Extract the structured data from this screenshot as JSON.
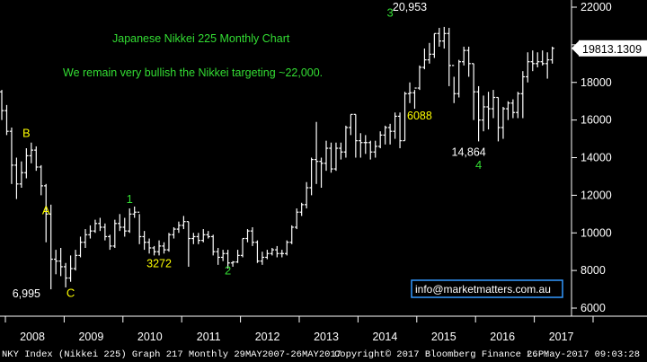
{
  "chart_data": {
    "type": "ohlc",
    "title": "Japanese Nikkei 225 Monthly Chart",
    "subtitle": "We remain very bullish the Nikkei targeting ~22,000.",
    "ylim": [
      6000,
      22000
    ],
    "y_ticks": [
      6000,
      8000,
      10000,
      12000,
      14000,
      16000,
      18000,
      20000,
      22000
    ],
    "x_labels": [
      "2008",
      "2009",
      "2010",
      "2011",
      "2012",
      "2013",
      "2014",
      "2015",
      "2016",
      "2017"
    ],
    "last_price_label": "19813.1309",
    "last_price": 19813.13,
    "series": [
      {
        "values": [
          [
            17500,
            17600,
            16000,
            16500
          ],
          [
            16500,
            16800,
            15200,
            15400
          ],
          [
            15400,
            15600,
            12600,
            13600
          ],
          [
            13600,
            14000,
            11800,
            12600
          ],
          [
            12600,
            13800,
            12400,
            13200
          ],
          [
            13200,
            14500,
            12900,
            14100
          ],
          [
            14100,
            14800,
            13700,
            14400
          ],
          [
            14400,
            14600,
            13300,
            13500
          ],
          [
            13500,
            13600,
            12000,
            12500
          ],
          [
            12500,
            12600,
            9500,
            11000
          ],
          [
            11000,
            11500,
            7000,
            8600
          ],
          [
            8600,
            9100,
            7800,
            8500
          ],
          [
            8500,
            9200,
            7700,
            8200
          ],
          [
            8200,
            8400,
            7100,
            7600
          ],
          [
            7600,
            8800,
            7400,
            8100
          ],
          [
            8100,
            9100,
            8000,
            8800
          ],
          [
            8800,
            9800,
            8700,
            9500
          ],
          [
            9500,
            10200,
            9200,
            9900
          ],
          [
            9900,
            10400,
            9700,
            10100
          ],
          [
            10100,
            10700,
            10000,
            10500
          ],
          [
            10500,
            10800,
            10100,
            10300
          ],
          [
            10300,
            10500,
            9600,
            9800
          ],
          [
            9800,
            9900,
            9100,
            9300
          ],
          [
            9300,
            10700,
            9200,
            10500
          ],
          [
            10500,
            11000,
            10100,
            10300
          ],
          [
            10300,
            10800,
            9800,
            10100
          ],
          [
            10100,
            11300,
            10000,
            11000
          ],
          [
            11000,
            11400,
            10800,
            11100
          ],
          [
            11100,
            11000,
            9400,
            9800
          ],
          [
            9800,
            10100,
            9100,
            9500
          ],
          [
            9500,
            9700,
            8900,
            9200
          ],
          [
            9200,
            9300,
            8800,
            9000
          ],
          [
            9000,
            9600,
            8800,
            9300
          ],
          [
            9300,
            9500,
            8900,
            9100
          ],
          [
            9100,
            10000,
            9000,
            9900
          ],
          [
            9900,
            10300,
            9700,
            10200
          ],
          [
            10200,
            10600,
            10000,
            10400
          ],
          [
            10400,
            10900,
            10200,
            10600
          ],
          [
            10600,
            10600,
            8200,
            9700
          ],
          [
            9700,
            10000,
            9400,
            9800
          ],
          [
            9800,
            10000,
            9400,
            9600
          ],
          [
            9600,
            10200,
            9500,
            9900
          ],
          [
            9900,
            10100,
            9700,
            9800
          ],
          [
            9800,
            9900,
            8800,
            9000
          ],
          [
            9000,
            9200,
            8300,
            8700
          ],
          [
            8700,
            9100,
            8500,
            8900
          ],
          [
            8900,
            9100,
            8100,
            8400
          ],
          [
            8400,
            8500,
            8200,
            8450
          ],
          [
            8450,
            9100,
            8400,
            8800
          ],
          [
            8800,
            9700,
            8700,
            9700
          ],
          [
            9700,
            10200,
            9500,
            10100
          ],
          [
            10100,
            10300,
            9300,
            9500
          ],
          [
            9500,
            9600,
            8400,
            8500
          ],
          [
            8500,
            9000,
            8300,
            8700
          ],
          [
            8700,
            9100,
            8600,
            8900
          ],
          [
            8900,
            9200,
            8800,
            9100
          ],
          [
            9100,
            9300,
            8700,
            8900
          ],
          [
            8900,
            9100,
            8700,
            8900
          ],
          [
            8900,
            9600,
            8800,
            9500
          ],
          [
            9500,
            10400,
            9400,
            10300
          ],
          [
            10300,
            11300,
            10200,
            11100
          ],
          [
            11100,
            11600,
            10900,
            11500
          ],
          [
            11500,
            12700,
            11300,
            12400
          ],
          [
            12400,
            14000,
            12000,
            13900
          ],
          [
            13900,
            15900,
            12600,
            13800
          ],
          [
            13800,
            14000,
            12400,
            13700
          ],
          [
            13700,
            14900,
            13300,
            14500
          ],
          [
            14500,
            14800,
            13200,
            13400
          ],
          [
            13400,
            14800,
            13300,
            14500
          ],
          [
            14500,
            14800,
            13900,
            14300
          ],
          [
            14300,
            15700,
            14000,
            15600
          ],
          [
            15600,
            16300,
            15200,
            16300
          ],
          [
            16300,
            16300,
            14000,
            14900
          ],
          [
            14900,
            15300,
            14000,
            14800
          ],
          [
            14800,
            15200,
            14200,
            14800
          ],
          [
            14800,
            14900,
            13900,
            14300
          ],
          [
            14300,
            14900,
            14000,
            14600
          ],
          [
            14600,
            15400,
            14500,
            15200
          ],
          [
            15200,
            15700,
            14700,
            15600
          ],
          [
            15600,
            15800,
            14700,
            15400
          ],
          [
            15400,
            16400,
            15000,
            16200
          ],
          [
            16200,
            16400,
            14500,
            14900
          ],
          [
            14900,
            17500,
            14900,
            17400
          ],
          [
            17400,
            18000,
            16900,
            17450
          ],
          [
            17450,
            17600,
            16600,
            17700
          ],
          [
            17700,
            18900,
            17600,
            18800
          ],
          [
            18800,
            19800,
            18700,
            19200
          ],
          [
            19200,
            20100,
            19000,
            19500
          ],
          [
            19500,
            20600,
            19300,
            20600
          ],
          [
            20600,
            20900,
            19900,
            20200
          ],
          [
            20200,
            20953,
            19800,
            20600
          ],
          [
            20600,
            20900,
            17800,
            18900
          ],
          [
            18900,
            18300,
            16900,
            17400
          ],
          [
            17400,
            19200,
            17200,
            19100
          ],
          [
            19100,
            19900,
            18900,
            19700
          ],
          [
            19700,
            19900,
            18300,
            19000
          ],
          [
            19000,
            19000,
            16000,
            17500
          ],
          [
            17500,
            17800,
            14865,
            16000
          ],
          [
            16000,
            17300,
            15400,
            16700
          ],
          [
            16700,
            17500,
            15500,
            16600
          ],
          [
            16600,
            17600,
            16100,
            17200
          ],
          [
            17200,
            17200,
            14864,
            15600
          ],
          [
            15600,
            16700,
            15000,
            16600
          ],
          [
            16600,
            17000,
            16000,
            16900
          ],
          [
            16900,
            17100,
            16100,
            16400
          ],
          [
            16400,
            17500,
            16100,
            17400
          ],
          [
            17400,
            18600,
            16100,
            18300
          ],
          [
            18300,
            19600,
            18000,
            19100
          ],
          [
            19100,
            19700,
            18600,
            19000
          ],
          [
            19000,
            19600,
            18800,
            19100
          ],
          [
            19100,
            19700,
            18900,
            19000
          ],
          [
            19000,
            19600,
            18200,
            19200
          ],
          [
            19200,
            19900,
            19000,
            19813
          ]
        ]
      }
    ],
    "annotations": {
      "wave_labels": [
        {
          "text": "A",
          "idx": 9,
          "price": 11000,
          "color": "#ffff00"
        },
        {
          "text": "B",
          "idx": 5,
          "price": 15100,
          "color": "#ffff00"
        },
        {
          "text": "C",
          "idx": 14,
          "price": 6600,
          "color": "#ffff00"
        },
        {
          "text": "1",
          "idx": 26,
          "price": 11600,
          "color": "#33dd33"
        },
        {
          "text": "2",
          "idx": 46,
          "price": 7800,
          "color": "#33dd33"
        },
        {
          "text": "3",
          "idx": 79,
          "price": 21500,
          "color": "#33dd33"
        },
        {
          "text": "4",
          "idx": 97,
          "price": 13400,
          "color": "#33dd33"
        }
      ],
      "value_labels": [
        {
          "text": "6,995",
          "idx": 5,
          "price": 6580,
          "color": "#ffffff"
        },
        {
          "text": "3272",
          "idx": 32,
          "price": 8170,
          "color": "#ffff00"
        },
        {
          "text": "20,953",
          "idx": 83,
          "price": 21800,
          "color": "#ffffff"
        },
        {
          "text": "6088",
          "idx": 85,
          "price": 16020,
          "color": "#ffff00"
        },
        {
          "text": "14,864",
          "idx": 95,
          "price": 14090,
          "color": "#ffffff"
        }
      ],
      "contact_label": "info@marketmatters.com.au"
    }
  },
  "footer": {
    "left": "NKY Index (Nikkei 225) Graph 217  Monthly 29MAY2007-26MAY2017",
    "center": "Copyright© 2017 Bloomberg Finance L.P.",
    "right": "26-May-2017 09:03:28"
  },
  "colors": {
    "background": "#000000",
    "bars": "#ffffff",
    "title": "#33dd33",
    "axis_bg": "#000000",
    "contact_border": "#3399ff"
  }
}
